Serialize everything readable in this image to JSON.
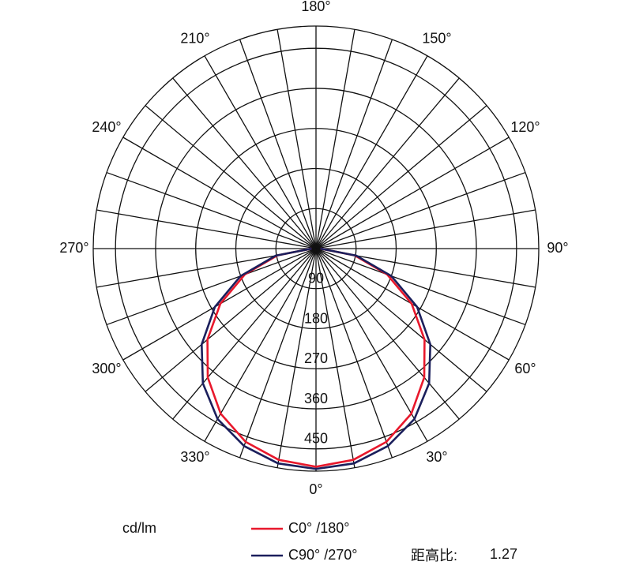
{
  "chart_data": {
    "type": "polar",
    "rlim": [
      0,
      500
    ],
    "rticks": [
      90,
      180,
      270,
      360,
      450
    ],
    "theta_grid": [
      0,
      10,
      20,
      30,
      40,
      50,
      60,
      70,
      80,
      90,
      100,
      110,
      120,
      130,
      140,
      150,
      160,
      170,
      180,
      190,
      200,
      210,
      220,
      230,
      240,
      250,
      260,
      270,
      280,
      290,
      300,
      310,
      320,
      330,
      340,
      350
    ],
    "thetaticks": [
      {
        "value": 0,
        "label": "0°"
      },
      {
        "value": 30,
        "label": "30°"
      },
      {
        "value": 60,
        "label": "60°"
      },
      {
        "value": 90,
        "label": "90°"
      },
      {
        "value": 120,
        "label": "120°"
      },
      {
        "value": 150,
        "label": "150°"
      },
      {
        "value": 180,
        "label": "180°"
      },
      {
        "value": 210,
        "label": "210°"
      },
      {
        "value": 240,
        "label": "240°"
      },
      {
        "value": 270,
        "label": "270°"
      },
      {
        "value": 300,
        "label": "300°"
      },
      {
        "value": 330,
        "label": "330°"
      }
    ],
    "unit_label": "cd/lm",
    "x": [
      270,
      280,
      290,
      300,
      310,
      320,
      330,
      340,
      350,
      0,
      10,
      20,
      30,
      40,
      50,
      60,
      70,
      80,
      90
    ],
    "series": [
      {
        "name": "C0° /180°",
        "color": "#e8182c",
        "values": [
          10,
          88,
          170,
          248,
          318,
          378,
          428,
          462,
          482,
          490,
          482,
          462,
          428,
          378,
          318,
          248,
          170,
          88,
          10
        ]
      },
      {
        "name": "C90° /270°",
        "color": "#1b1f5c",
        "values": [
          10,
          92,
          180,
          262,
          335,
          395,
          442,
          472,
          490,
          495,
          490,
          472,
          442,
          395,
          335,
          262,
          180,
          92,
          10
        ]
      }
    ],
    "spacing_ratio": {
      "label": "距高比:",
      "value": 1.27
    }
  }
}
